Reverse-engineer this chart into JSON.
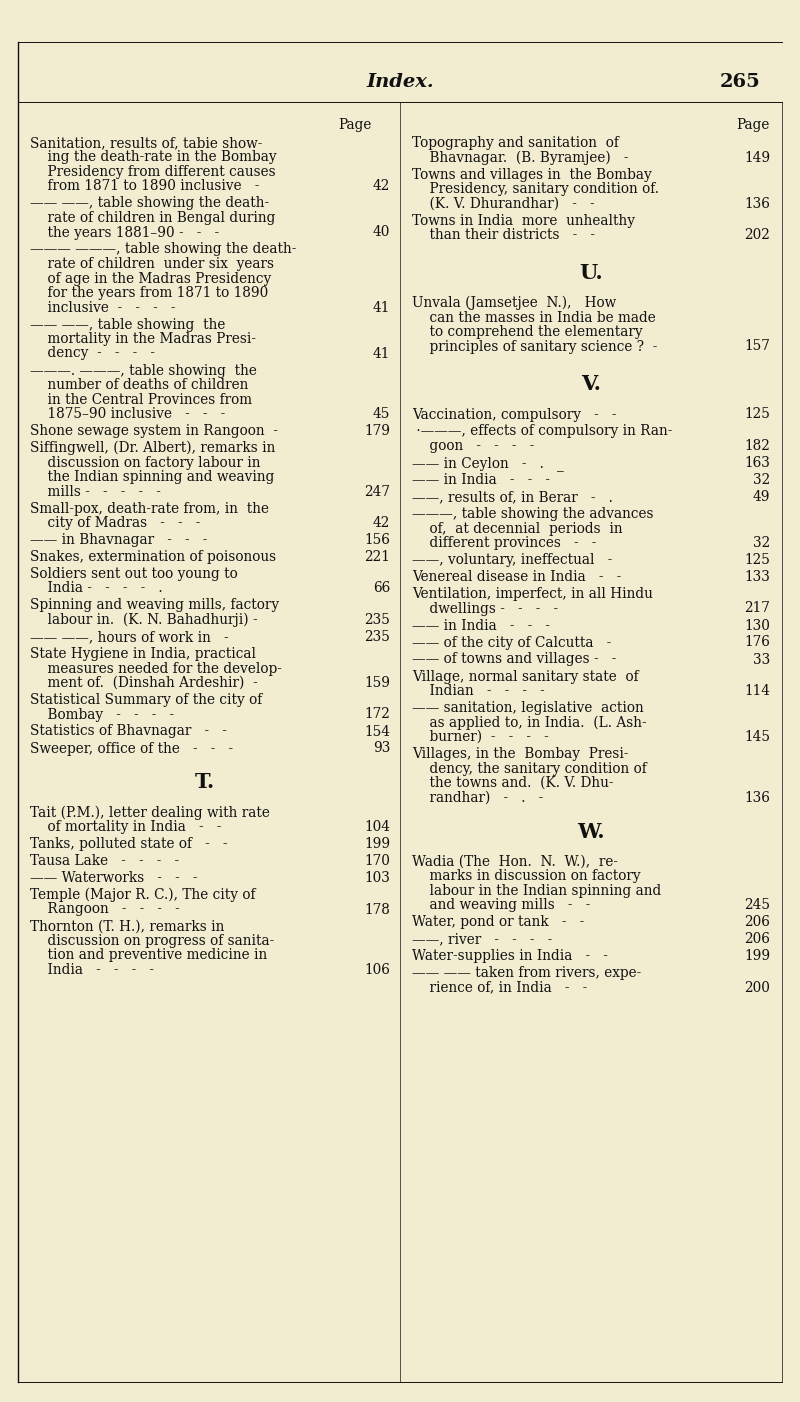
{
  "bg_color": "#f2ecd0",
  "text_color": "#111111",
  "header_italic": "Index.",
  "page_num_header": "265",
  "body_fontsize": 9.8,
  "section_fontsize": 15,
  "fig_width": 8.0,
  "fig_height": 14.02,
  "dpi": 100,
  "left_col": [
    {
      "lines": [
        "Sanitation, results of, tabie show-",
        "    ing the death-rate in the Bombay",
        "    Presidency from different causes",
        "    from 1871 to 1890 inclusive   -"
      ],
      "page": "42"
    },
    {
      "lines": [
        "—— ——, table showing the death-",
        "    rate of children in Bengal during",
        "    the years 1881–90 -   -   -"
      ],
      "page": "40"
    },
    {
      "lines": [
        "——— ———, table showing the death-",
        "    rate of children  under six  years",
        "    of age in the Madras Presidency",
        "    for the years from 1871 to 1890",
        "    inclusive  -   -   -   -"
      ],
      "page": "41"
    },
    {
      "lines": [
        "—— ——, table showing  the",
        "    mortality in the Madras Presi-",
        "    dency  -   -   -   -"
      ],
      "page": "41"
    },
    {
      "lines": [
        "———. ———, table showing  the",
        "    number of deaths of children",
        "    in the Central Provinces from",
        "    1875–90 inclusive   -   -   -"
      ],
      "page": "45"
    },
    {
      "lines": [
        "Shone sewage system in Rangoon  -"
      ],
      "page": "179"
    },
    {
      "lines": [
        "Siffingwell, (Dr. Albert), remarks in",
        "    discussion on factory labour in",
        "    the Indian spinning and weaving",
        "    mills -   -   -   -   -"
      ],
      "page": "247"
    },
    {
      "lines": [
        "Small-pox, death-rate from, in  the",
        "    city of Madras   -   -   -"
      ],
      "page": "42"
    },
    {
      "lines": [
        "—— in Bhavnagar   -   -   -"
      ],
      "page": "156"
    },
    {
      "lines": [
        "Snakes, extermination of poisonous"
      ],
      "page": "221"
    },
    {
      "lines": [
        "Soldiers sent out too young to",
        "    India -   -   -   -   ."
      ],
      "page": "66"
    },
    {
      "lines": [
        "Spinning and weaving mills, factory",
        "    labour in.  (K. N. Bahadhurji) -"
      ],
      "page": "235"
    },
    {
      "lines": [
        "—— ——, hours of work in   -"
      ],
      "page": "235"
    },
    {
      "lines": [
        "State Hygiene in India, practical",
        "    measures needed for the develop-",
        "    ment of.  (Dinshah Ardeshir)  -"
      ],
      "page": "159"
    },
    {
      "lines": [
        "Statistical Summary of the city of",
        "    Bombay   -   -   -   -"
      ],
      "page": "172"
    },
    {
      "lines": [
        "Statistics of Bhavnagar   -   -"
      ],
      "page": "154"
    },
    {
      "lines": [
        "Sweeper, office of the   -   -   -"
      ],
      "page": "93"
    }
  ],
  "left_t_col": [
    {
      "lines": [
        "Tait (P.M.), letter dealing with rate",
        "    of mortality in India   -   -"
      ],
      "page": "104"
    },
    {
      "lines": [
        "Tanks, polluted state of   -   -"
      ],
      "page": "199"
    },
    {
      "lines": [
        "Tausa Lake   -   -   -   -"
      ],
      "page": "170"
    },
    {
      "lines": [
        "—— Waterworks   -   -   -"
      ],
      "page": "103"
    },
    {
      "lines": [
        "Temple (Major R. C.), The city of",
        "    Rangoon   -   -   -   -"
      ],
      "page": "178"
    },
    {
      "lines": [
        "Thornton (T. H.), remarks in",
        "    discussion on progress of sanita-",
        "    tion and preventive medicine in",
        "    India   -   -   -   -"
      ],
      "page": "106"
    }
  ],
  "right_col": [
    {
      "lines": [
        "Topography and sanitation  of",
        "    Bhavnagar.  (B. Byramjee)   -"
      ],
      "page": "149"
    },
    {
      "lines": [
        "Towns and villages in  the Bombay",
        "    Presidency, sanitary condition of.",
        "    (K. V. Dhurandhar)   -   -"
      ],
      "page": "136"
    },
    {
      "lines": [
        "Towns in India  more  unhealthy",
        "    than their districts   -   -"
      ],
      "page": "202"
    }
  ],
  "right_u_col": [
    {
      "lines": [
        "Unvala (Jamsetjee  N.),   How",
        "    can the masses in India be made",
        "    to comprehend the elementary",
        "    principles of sanitary science ?  -"
      ],
      "page": "157"
    }
  ],
  "right_v_col": [
    {
      "lines": [
        "Vaccination, compulsory   -   -"
      ],
      "page": "125"
    },
    {
      "lines": [
        " ·———, effects of compulsory in Ran-",
        "    goon   -   -   -   -"
      ],
      "page": "182"
    },
    {
      "lines": [
        "—— in Ceylon   -   .   _"
      ],
      "page": "163"
    },
    {
      "lines": [
        "—— in India   -   -   -"
      ],
      "page": "32"
    },
    {
      "lines": [
        "——, results of, in Berar   -   ."
      ],
      "page": "49"
    },
    {
      "lines": [
        "———, table showing the advances",
        "    of,  at decennial  periods  in",
        "    different provinces   -   -"
      ],
      "page": "32"
    },
    {
      "lines": [
        "——, voluntary, ineffectual   -"
      ],
      "page": "125"
    },
    {
      "lines": [
        "Venereal disease in India   -   -"
      ],
      "page": "133"
    },
    {
      "lines": [
        "Ventilation, imperfect, in all Hindu",
        "    dwellings -   -   -   -"
      ],
      "page": "217"
    },
    {
      "lines": [
        "—— in India   -   -   -"
      ],
      "page": "130"
    },
    {
      "lines": [
        "—— of the city of Calcutta   -"
      ],
      "page": "176"
    },
    {
      "lines": [
        "—— of towns and villages -   -"
      ],
      "page": "33"
    },
    {
      "lines": [
        "Village, normal sanitary state  of",
        "    Indian   -   -   -   -"
      ],
      "page": "114"
    },
    {
      "lines": [
        "—— sanitation, legislative  action",
        "    as applied to, in India.  (L. Ash-",
        "    burner)  -   -   -   -"
      ],
      "page": "145"
    },
    {
      "lines": [
        "Villages, in the  Bombay  Presi-",
        "    dency, the sanitary condition of",
        "    the towns and.  (K. V. Dhu-",
        "    randhar)   -   .   -"
      ],
      "page": "136"
    }
  ],
  "right_w_col": [
    {
      "lines": [
        "Wadia (The  Hon.  N.  W.),  re-",
        "    marks in discussion on factory",
        "    labour in the Indian spinning and",
        "    and weaving mills   -   -"
      ],
      "page": "245"
    },
    {
      "lines": [
        "Water, pond or tank   -   -"
      ],
      "page": "206"
    },
    {
      "lines": [
        "——, river   -   -   -   -"
      ],
      "page": "206"
    },
    {
      "lines": [
        "Water-supplies in India   -   -"
      ],
      "page": "199"
    },
    {
      "lines": [
        "—— —— taken from rivers, expe-",
        "    rience of, in India   -   -"
      ],
      "page": "200"
    }
  ]
}
